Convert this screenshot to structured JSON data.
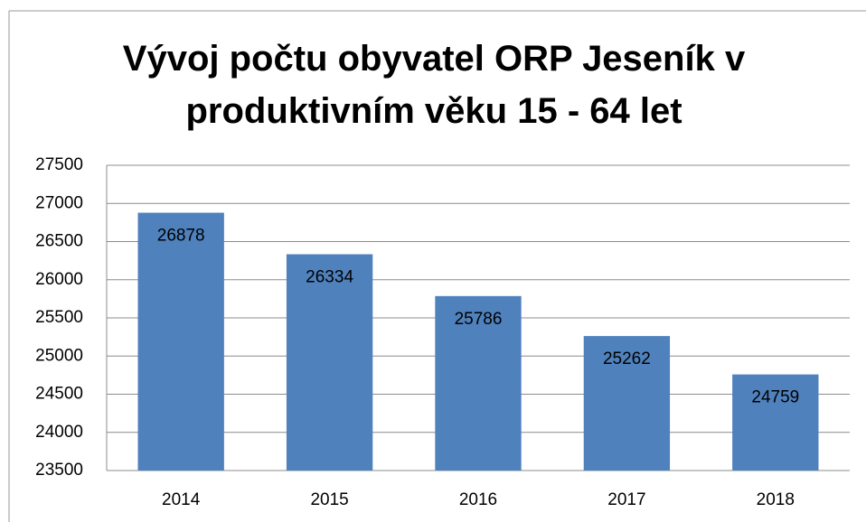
{
  "chart_data": {
    "type": "bar",
    "title": "Vývoj počtu obyvatel ORP Jeseník v produktivním věku 15 - 64 let",
    "categories": [
      "2014",
      "2015",
      "2016",
      "2017",
      "2018"
    ],
    "values": [
      26878,
      26334,
      25786,
      25262,
      24759
    ],
    "color": "#4f81bd",
    "ylim": [
      23500,
      27500
    ],
    "yticks": [
      23500,
      24000,
      24500,
      25000,
      25500,
      26000,
      26500,
      27000,
      27500
    ],
    "grid": true
  }
}
